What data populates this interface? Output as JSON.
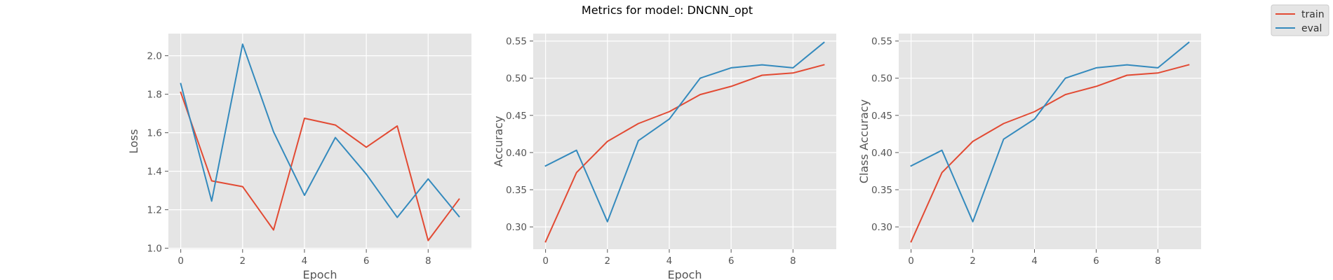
{
  "suptitle": "Metrics for model: DNCNN_opt",
  "legend": {
    "placement": "top-right",
    "entries": [
      {
        "name": "train",
        "color": "#E24A33"
      },
      {
        "name": "eval",
        "color": "#348ABD"
      }
    ]
  },
  "chart_data": [
    {
      "type": "line",
      "title": "",
      "xlabel": "Epoch",
      "ylabel": "Loss",
      "xlim": [
        -0.4,
        9.4
      ],
      "ylim": [
        0.995,
        2.115
      ],
      "xticks": [
        0,
        2,
        4,
        6,
        8
      ],
      "xtick_labels": [
        "0",
        "2",
        "4",
        "6",
        "8"
      ],
      "yticks": [
        1.0,
        1.2,
        1.4,
        1.6,
        1.8,
        2.0
      ],
      "ytick_labels": [
        "1.0",
        "1.2",
        "1.4",
        "1.6",
        "1.8",
        "2.0"
      ],
      "grid": true,
      "x": [
        0,
        1,
        2,
        3,
        4,
        5,
        6,
        7,
        8,
        9
      ],
      "series": [
        {
          "name": "train",
          "values": [
            1.81,
            1.35,
            1.32,
            1.095,
            1.675,
            1.64,
            1.525,
            1.635,
            1.04,
            1.255
          ]
        },
        {
          "name": "eval",
          "values": [
            1.855,
            1.245,
            2.06,
            1.605,
            1.275,
            1.575,
            1.385,
            1.16,
            1.36,
            1.165
          ]
        }
      ]
    },
    {
      "type": "line",
      "title": "",
      "xlabel": "Epoch",
      "ylabel": "Accuracy",
      "xlim": [
        -0.4,
        9.4
      ],
      "ylim": [
        0.27,
        0.56
      ],
      "xticks": [
        0,
        2,
        4,
        6,
        8
      ],
      "xtick_labels": [
        "0",
        "2",
        "4",
        "6",
        "8"
      ],
      "yticks": [
        0.3,
        0.35,
        0.4,
        0.45,
        0.5,
        0.55
      ],
      "ytick_labels": [
        "0.30",
        "0.35",
        "0.40",
        "0.45",
        "0.50",
        "0.55"
      ],
      "grid": true,
      "x": [
        0,
        1,
        2,
        3,
        4,
        5,
        6,
        7,
        8,
        9
      ],
      "series": [
        {
          "name": "train",
          "values": [
            0.28,
            0.373,
            0.415,
            0.439,
            0.455,
            0.478,
            0.489,
            0.504,
            0.507,
            0.518
          ]
        },
        {
          "name": "eval",
          "values": [
            0.382,
            0.403,
            0.307,
            0.416,
            0.445,
            0.5,
            0.514,
            0.518,
            0.514,
            0.548
          ]
        }
      ]
    },
    {
      "type": "line",
      "title": "",
      "xlabel": "",
      "ylabel": "Class Accuracy",
      "xlim": [
        -0.4,
        9.4
      ],
      "ylim": [
        0.27,
        0.56
      ],
      "xticks": [
        0,
        2,
        4,
        6,
        8
      ],
      "xtick_labels": [
        "0",
        "2",
        "4",
        "6",
        "8"
      ],
      "yticks": [
        0.3,
        0.35,
        0.4,
        0.45,
        0.5,
        0.55
      ],
      "ytick_labels": [
        "0.30",
        "0.35",
        "0.40",
        "0.45",
        "0.50",
        "0.55"
      ],
      "grid": true,
      "x": [
        0,
        1,
        2,
        3,
        4,
        5,
        6,
        7,
        8,
        9
      ],
      "series": [
        {
          "name": "train",
          "values": [
            0.28,
            0.373,
            0.415,
            0.439,
            0.455,
            0.478,
            0.489,
            0.504,
            0.507,
            0.518
          ]
        },
        {
          "name": "eval",
          "values": [
            0.382,
            0.403,
            0.307,
            0.418,
            0.445,
            0.5,
            0.514,
            0.518,
            0.514,
            0.548
          ]
        }
      ]
    }
  ]
}
